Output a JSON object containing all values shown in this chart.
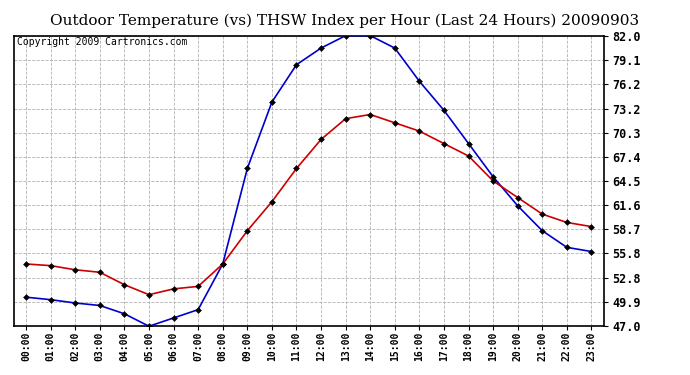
{
  "title": "Outdoor Temperature (vs) THSW Index per Hour (Last 24 Hours) 20090903",
  "copyright": "Copyright 2009 Cartronics.com",
  "hours": [
    "00:00",
    "01:00",
    "02:00",
    "03:00",
    "04:00",
    "05:00",
    "06:00",
    "07:00",
    "08:00",
    "09:00",
    "10:00",
    "11:00",
    "12:00",
    "13:00",
    "14:00",
    "15:00",
    "16:00",
    "17:00",
    "18:00",
    "19:00",
    "20:00",
    "21:00",
    "22:00",
    "23:00"
  ],
  "temp": [
    54.5,
    54.3,
    53.8,
    53.5,
    52.0,
    50.8,
    51.5,
    51.8,
    54.5,
    58.5,
    62.0,
    66.0,
    69.5,
    72.0,
    72.5,
    71.5,
    70.5,
    69.0,
    67.5,
    64.5,
    62.5,
    60.5,
    59.5,
    59.0
  ],
  "thsw": [
    50.5,
    50.2,
    49.8,
    49.5,
    48.5,
    47.0,
    48.0,
    49.0,
    54.5,
    66.0,
    74.0,
    78.5,
    80.5,
    82.0,
    82.0,
    80.5,
    76.5,
    73.0,
    69.0,
    65.0,
    61.5,
    58.5,
    56.5,
    56.0
  ],
  "temp_color": "#cc0000",
  "thsw_color": "#0000cc",
  "background_color": "#ffffff",
  "grid_color": "#aaaaaa",
  "title_fontsize": 11,
  "copyright_fontsize": 7,
  "ylim": [
    47.0,
    82.0
  ],
  "yticks": [
    47.0,
    49.9,
    52.8,
    55.8,
    58.7,
    61.6,
    64.5,
    67.4,
    70.3,
    73.2,
    76.2,
    79.1,
    82.0
  ]
}
